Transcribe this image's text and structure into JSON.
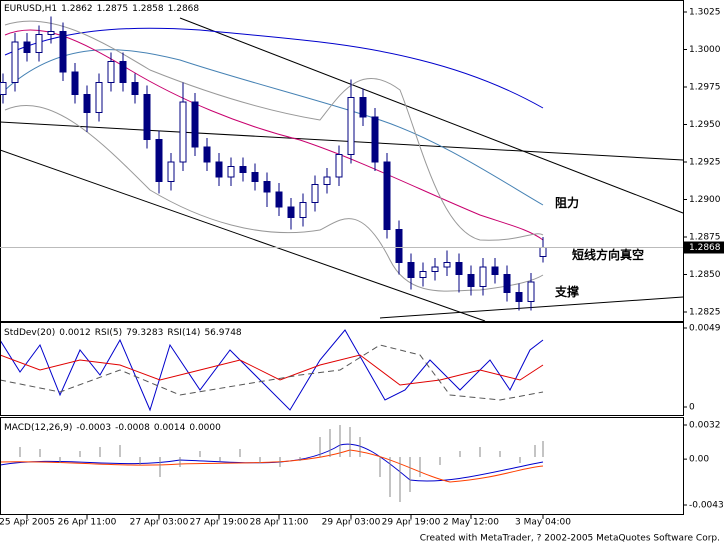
{
  "chart_data": [
    {
      "type": "candlestick",
      "title": "EURUSD,H1",
      "open": [
        1.297,
        1.2978,
        1.3005,
        1.2998,
        1.301,
        1.3012,
        1.2985,
        1.297,
        1.2958,
        1.2978,
        1.2992,
        1.2978,
        1.297,
        1.294,
        1.2912,
        1.2925,
        1.2965,
        1.2935,
        1.2925,
        1.2915,
        1.2922,
        1.2918,
        1.2912,
        1.2905,
        1.2895,
        1.2888,
        1.2898,
        1.291,
        1.2915,
        1.293,
        1.2968,
        1.2955,
        1.2925,
        1.288,
        1.2858,
        1.2848,
        1.2852,
        1.2855,
        1.2858,
        1.285,
        1.2842,
        1.2855,
        1.285,
        1.2838,
        1.2832,
        1.2862
      ],
      "high": [
        1.2984,
        1.3011,
        1.3011,
        1.3016,
        1.3022,
        1.3018,
        1.2991,
        1.2976,
        1.2984,
        1.2998,
        1.2998,
        1.2984,
        1.2976,
        1.2946,
        1.2931,
        1.2978,
        1.2971,
        1.2941,
        1.2931,
        1.2928,
        1.2928,
        1.2924,
        1.2918,
        1.2911,
        1.2901,
        1.2904,
        1.2916,
        1.2921,
        1.2936,
        1.298,
        1.2974,
        1.2961,
        1.2931,
        1.2886,
        1.2864,
        1.2858,
        1.2861,
        1.2866,
        1.2864,
        1.2856,
        1.2861,
        1.2861,
        1.2856,
        1.2844,
        1.2851,
        1.2875
      ],
      "low": [
        1.2964,
        1.2972,
        1.2992,
        1.2992,
        1.3004,
        1.2979,
        1.2964,
        1.2945,
        1.2952,
        1.2972,
        1.2972,
        1.2964,
        1.2934,
        1.2904,
        1.2906,
        1.2919,
        1.2929,
        1.2919,
        1.2909,
        1.2909,
        1.2912,
        1.2906,
        1.2895,
        1.2889,
        1.288,
        1.2882,
        1.2892,
        1.2904,
        1.2909,
        1.2924,
        1.2949,
        1.2919,
        1.2874,
        1.285,
        1.284,
        1.2842,
        1.2846,
        1.2849,
        1.2838,
        1.2836,
        1.2836,
        1.2844,
        1.2832,
        1.2826,
        1.2826,
        1.2858
      ],
      "close": [
        1.2978,
        1.3005,
        1.2998,
        1.301,
        1.3012,
        1.2985,
        1.297,
        1.2958,
        1.2978,
        1.2992,
        1.2978,
        1.297,
        1.294,
        1.2912,
        1.2925,
        1.2965,
        1.2935,
        1.2925,
        1.2915,
        1.2922,
        1.2918,
        1.2912,
        1.2905,
        1.2895,
        1.2888,
        1.2898,
        1.291,
        1.2915,
        1.293,
        1.2968,
        1.2955,
        1.2925,
        1.288,
        1.2858,
        1.2848,
        1.2852,
        1.2855,
        1.2858,
        1.285,
        1.2842,
        1.2855,
        1.285,
        1.2838,
        1.2832,
        1.2845,
        1.2868
      ],
      "ylim": [
        1.2819,
        1.3033
      ],
      "yticks": [
        1.3025,
        {
          "value": 1.3,
          "label": "1.3000"
        },
        1.2975,
        {
          "value": 1.295,
          "label": "1.2950"
        },
        1.2925,
        {
          "value": 1.29,
          "label": "1.2900"
        },
        1.2875,
        {
          "value": 1.285,
          "label": "1.2850"
        },
        1.2825
      ],
      "current_price": 1.2868,
      "xticks": [
        {
          "value": 2,
          "label": "25 Apr 2005"
        },
        {
          "value": 7,
          "label": "26 Apr 11:00"
        },
        {
          "value": 13,
          "label": "27 Apr 03:00"
        },
        {
          "value": 18,
          "label": "27 Apr 19:00"
        },
        {
          "value": 23,
          "label": "28 Apr 11:00"
        },
        {
          "value": 29,
          "label": "29 Apr 03:00"
        },
        {
          "value": 34,
          "label": "29 Apr 19:00"
        },
        {
          "value": 39,
          "label": "2 May 12:00"
        },
        {
          "value": 45,
          "label": "3 May 04:00"
        }
      ],
      "annotations": [
        "阻力",
        "短线方向真空",
        "支撑"
      ]
    },
    {
      "type": "line",
      "indicators": [
        {
          "name": "StdDev(20)",
          "value": 0.0012
        },
        {
          "name": "RSI(5)",
          "value": 79.3283
        },
        {
          "name": "RSI(14)",
          "value": 56.9748
        }
      ],
      "yticks": [
        0.0049,
        0
      ]
    },
    {
      "type": "histogram",
      "indicators": [
        {
          "name": "MACD(12,26,9)",
          "values": [
            -0.0003,
            -0.0008,
            0.0014,
            {
              "value": 0,
              "label": "0.0000"
            }
          ]
        }
      ],
      "yticks": [
        0.0032,
        {
          "value": 0,
          "label": "0.00"
        },
        -0.0043
      ]
    }
  ],
  "footer": "Created with MetaTrader, ? 2002-2005 MetaQuotes Software Corp."
}
